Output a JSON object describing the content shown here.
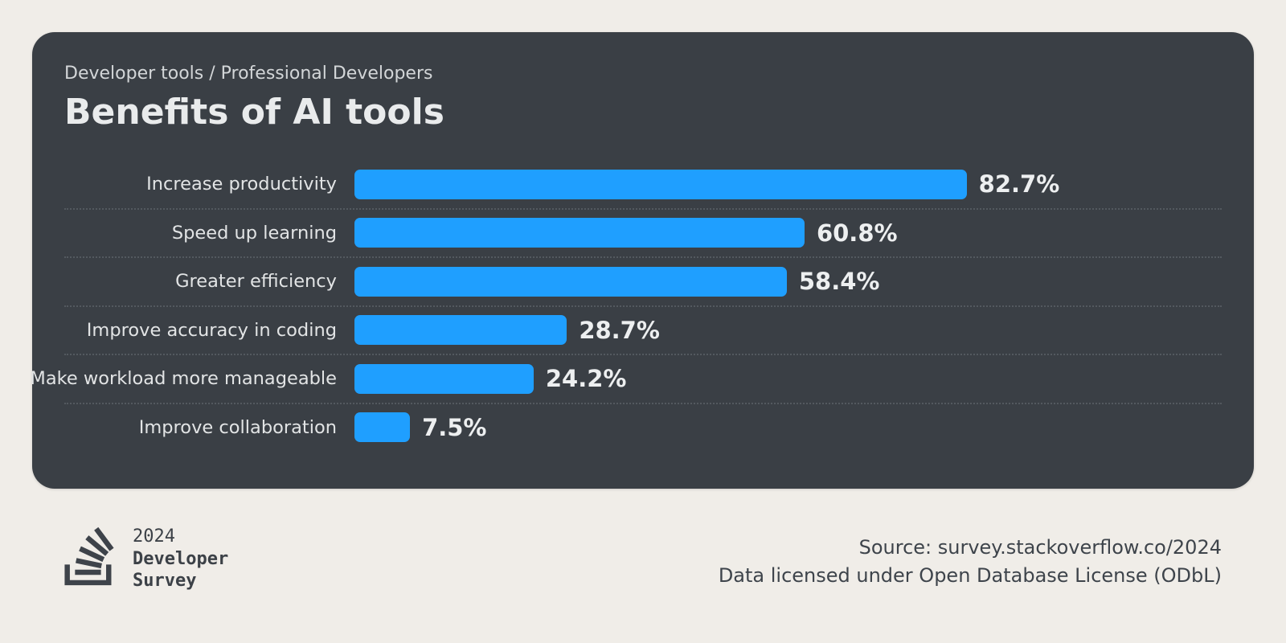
{
  "card": {
    "subtitle": "Developer tools / Professional Developers",
    "title": "Benefits of AI tools"
  },
  "chart_data": {
    "type": "bar",
    "orientation": "horizontal",
    "title": "Benefits of AI tools",
    "subtitle": "Developer tools / Professional Developers",
    "categories": [
      "Increase productivity",
      "Speed up learning",
      "Greater efficiency",
      "Improve accuracy in coding",
      "Make workload more manageable",
      "Improve collaboration"
    ],
    "values": [
      82.7,
      60.8,
      58.4,
      28.7,
      24.2,
      7.5
    ],
    "value_labels": [
      "82.7%",
      "60.8%",
      "58.4%",
      "28.7%",
      "24.2%",
      "7.5%"
    ],
    "value_suffix": "%",
    "xlim": [
      0,
      100
    ],
    "grid": false,
    "legend": "none",
    "bar_color": "#1f9fff",
    "row_divider_style": "dotted"
  },
  "footer": {
    "brand": {
      "logo_icon": "stackoverflow-logo",
      "year": "2024",
      "name_line1": "Developer",
      "name_line2": "Survey"
    },
    "source_line1": "Source: survey.stackoverflow.co/2024",
    "source_line2": "Data licensed under Open Database License (ODbL)"
  },
  "colors": {
    "page_background": "#f0ede8",
    "card_background": "#3a3f45",
    "bar_blue": "#1f9fff",
    "card_text_light": "#e9ebec",
    "footer_text_dark": "#3e444b"
  }
}
